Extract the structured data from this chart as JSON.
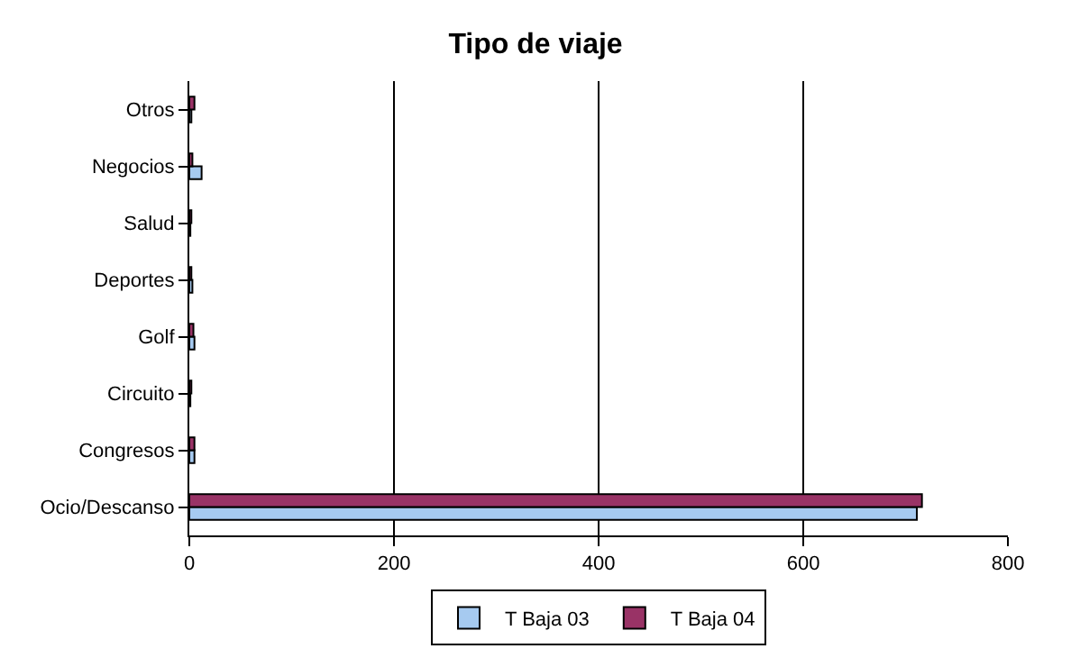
{
  "chart_data": {
    "type": "bar",
    "orientation": "horizontal",
    "title": "Tipo de viaje",
    "categories": [
      "Otros",
      "Negocios",
      "Salud",
      "Deportes",
      "Golf",
      "Circuito",
      "Congresos",
      "Ocio/Descanso"
    ],
    "series": [
      {
        "name": "T Baja 03",
        "color": "#a6caf0",
        "values": [
          2,
          12,
          1,
          3,
          5,
          1,
          5,
          711
        ]
      },
      {
        "name": "T Baja 04",
        "color": "#993366",
        "values": [
          5,
          3,
          2,
          2,
          4,
          2,
          5,
          716
        ]
      }
    ],
    "xlim": [
      0,
      800
    ],
    "xticks": [
      0,
      200,
      400,
      600,
      800
    ],
    "grid": "x",
    "legend": "bottom"
  }
}
